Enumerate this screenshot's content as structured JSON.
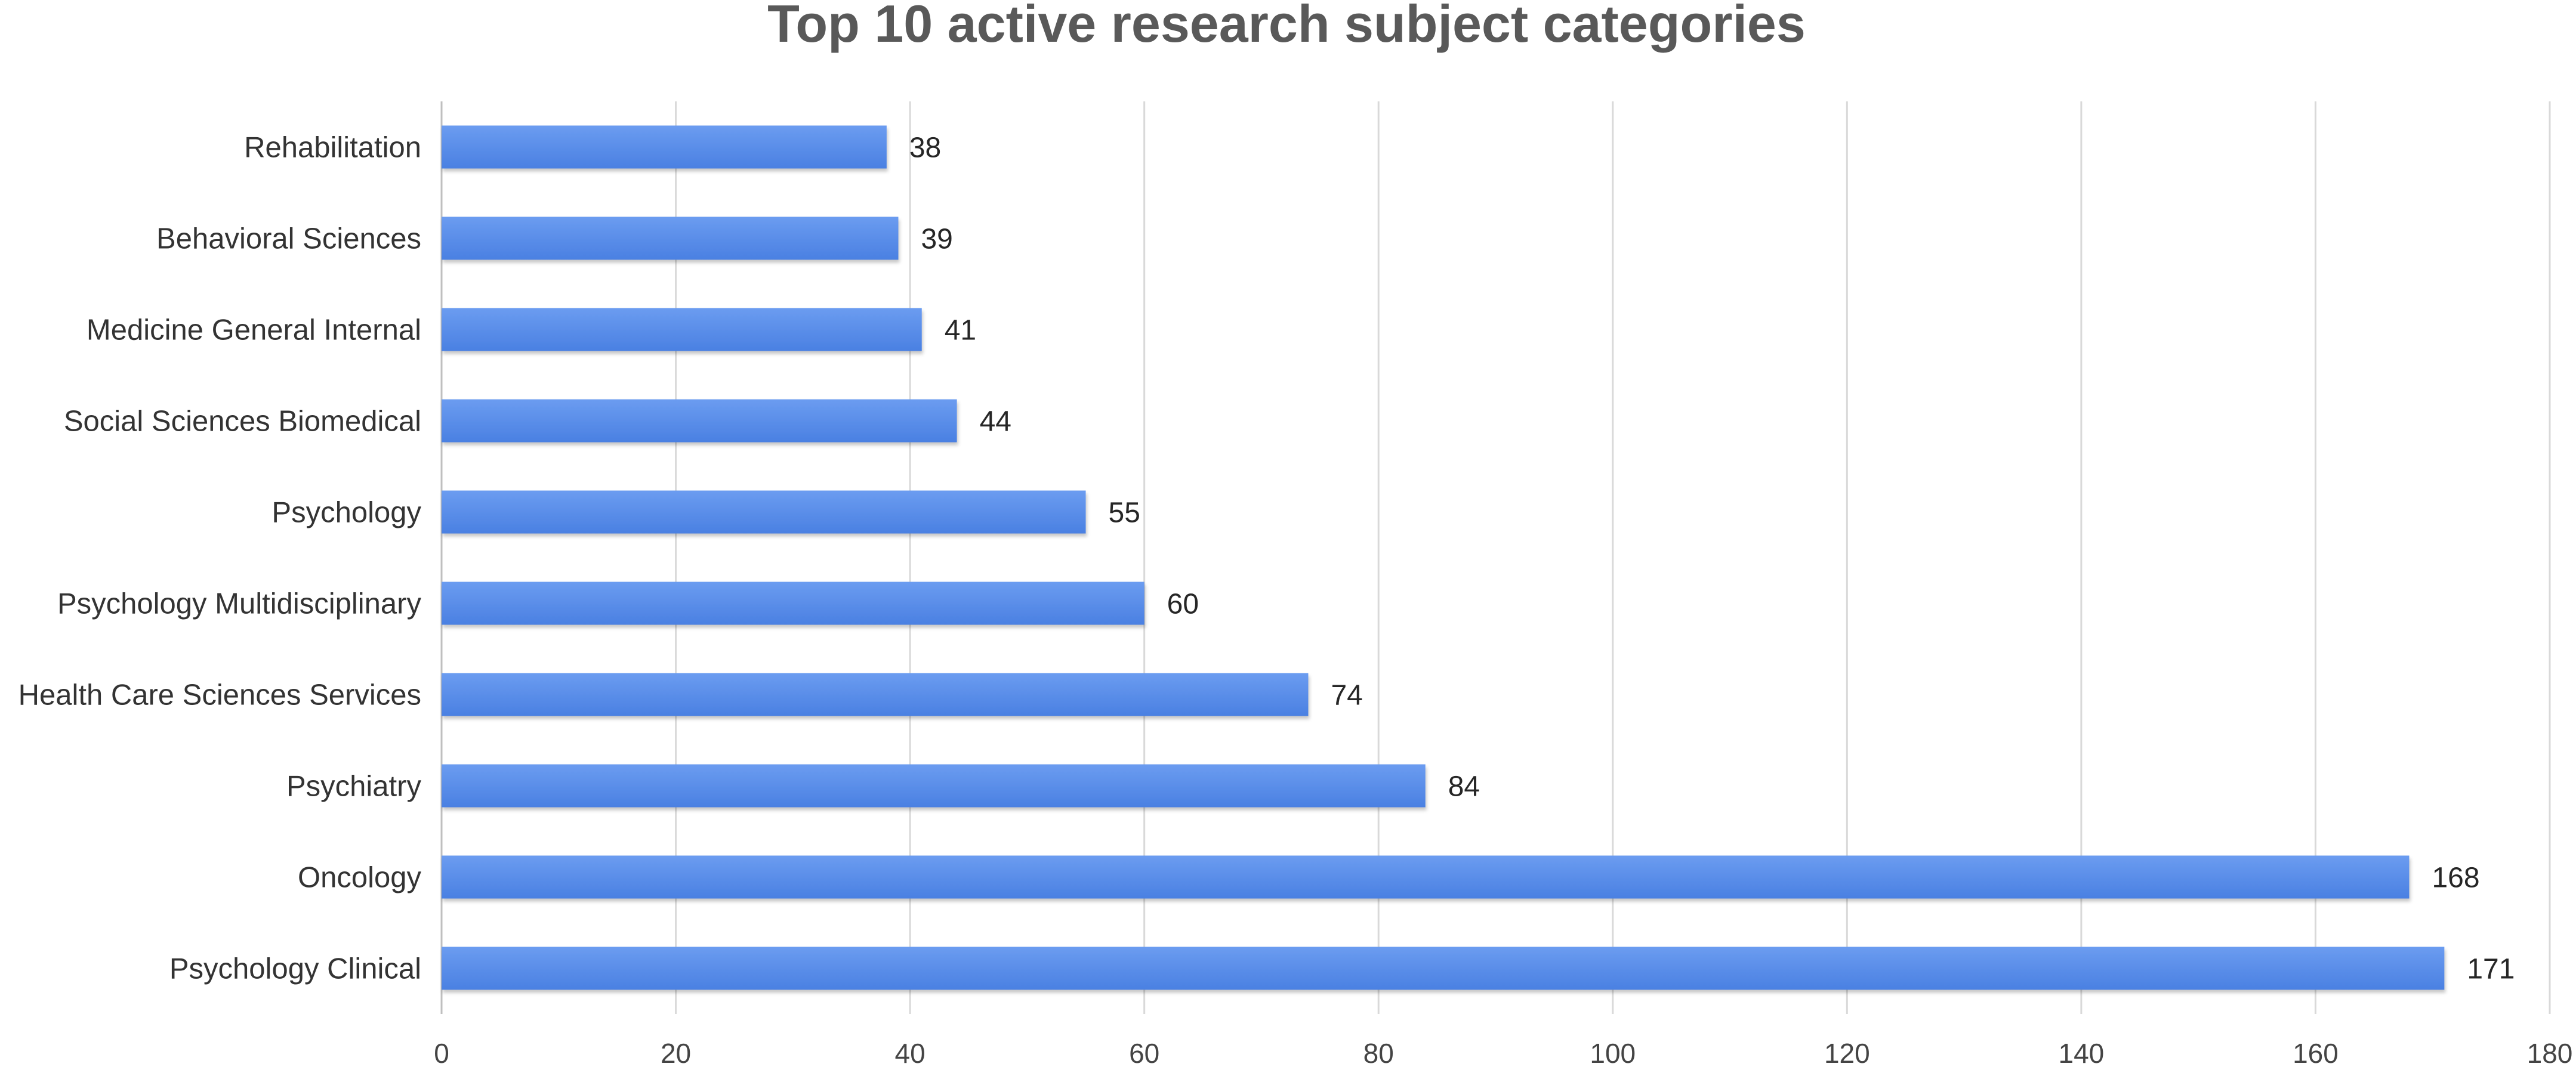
{
  "chart_data": {
    "type": "bar",
    "orientation": "horizontal",
    "title": "Top 10 active research subject categories",
    "categories": [
      "Rehabilitation",
      "Behavioral Sciences",
      "Medicine General Internal",
      "Social Sciences Biomedical",
      "Psychology",
      "Psychology Multidisciplinary",
      "Health Care Sciences Services",
      "Psychiatry",
      "Oncology",
      "Psychology Clinical"
    ],
    "values": [
      38,
      39,
      41,
      44,
      55,
      60,
      74,
      84,
      168,
      171
    ],
    "xlim": [
      0,
      180
    ],
    "x_ticks": [
      0,
      20,
      40,
      60,
      80,
      100,
      120,
      140,
      160,
      180
    ],
    "xlabel": "",
    "ylabel": "",
    "grid": "vertical",
    "data_labels": true,
    "bar_color": "#4f86e6",
    "bar_color_light": "#6b9cf0",
    "legend": "none"
  }
}
